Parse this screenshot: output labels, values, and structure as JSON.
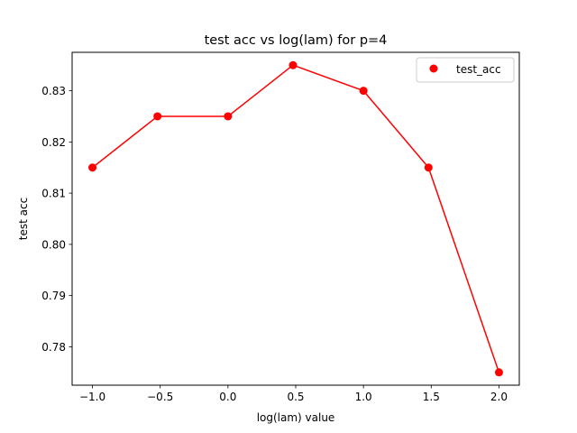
{
  "chart_data": {
    "type": "line",
    "title": "test acc vs log(lam) for p=4",
    "xlabel": "log(lam) value",
    "ylabel": "test acc",
    "xlim": [
      -1.15,
      2.15
    ],
    "ylim": [
      0.7725,
      0.8375
    ],
    "xticks": [
      -1.0,
      -0.5,
      0.0,
      0.5,
      1.0,
      1.5,
      2.0
    ],
    "xtick_labels": [
      "−1.0",
      "−0.5",
      "0.0",
      "0.5",
      "1.0",
      "1.5",
      "2.0"
    ],
    "yticks": [
      0.78,
      0.79,
      0.8,
      0.81,
      0.82,
      0.83
    ],
    "ytick_labels": [
      "0.78",
      "0.79",
      "0.80",
      "0.81",
      "0.82",
      "0.83"
    ],
    "grid": false,
    "legend_position": "upper right",
    "series": [
      {
        "name": "test_acc",
        "color": "#ff0000",
        "marker": "circle",
        "x": [
          -1.0,
          -0.52,
          0.0,
          0.48,
          1.0,
          1.48,
          2.0
        ],
        "y": [
          0.815,
          0.825,
          0.825,
          0.835,
          0.83,
          0.815,
          0.775
        ]
      }
    ]
  }
}
